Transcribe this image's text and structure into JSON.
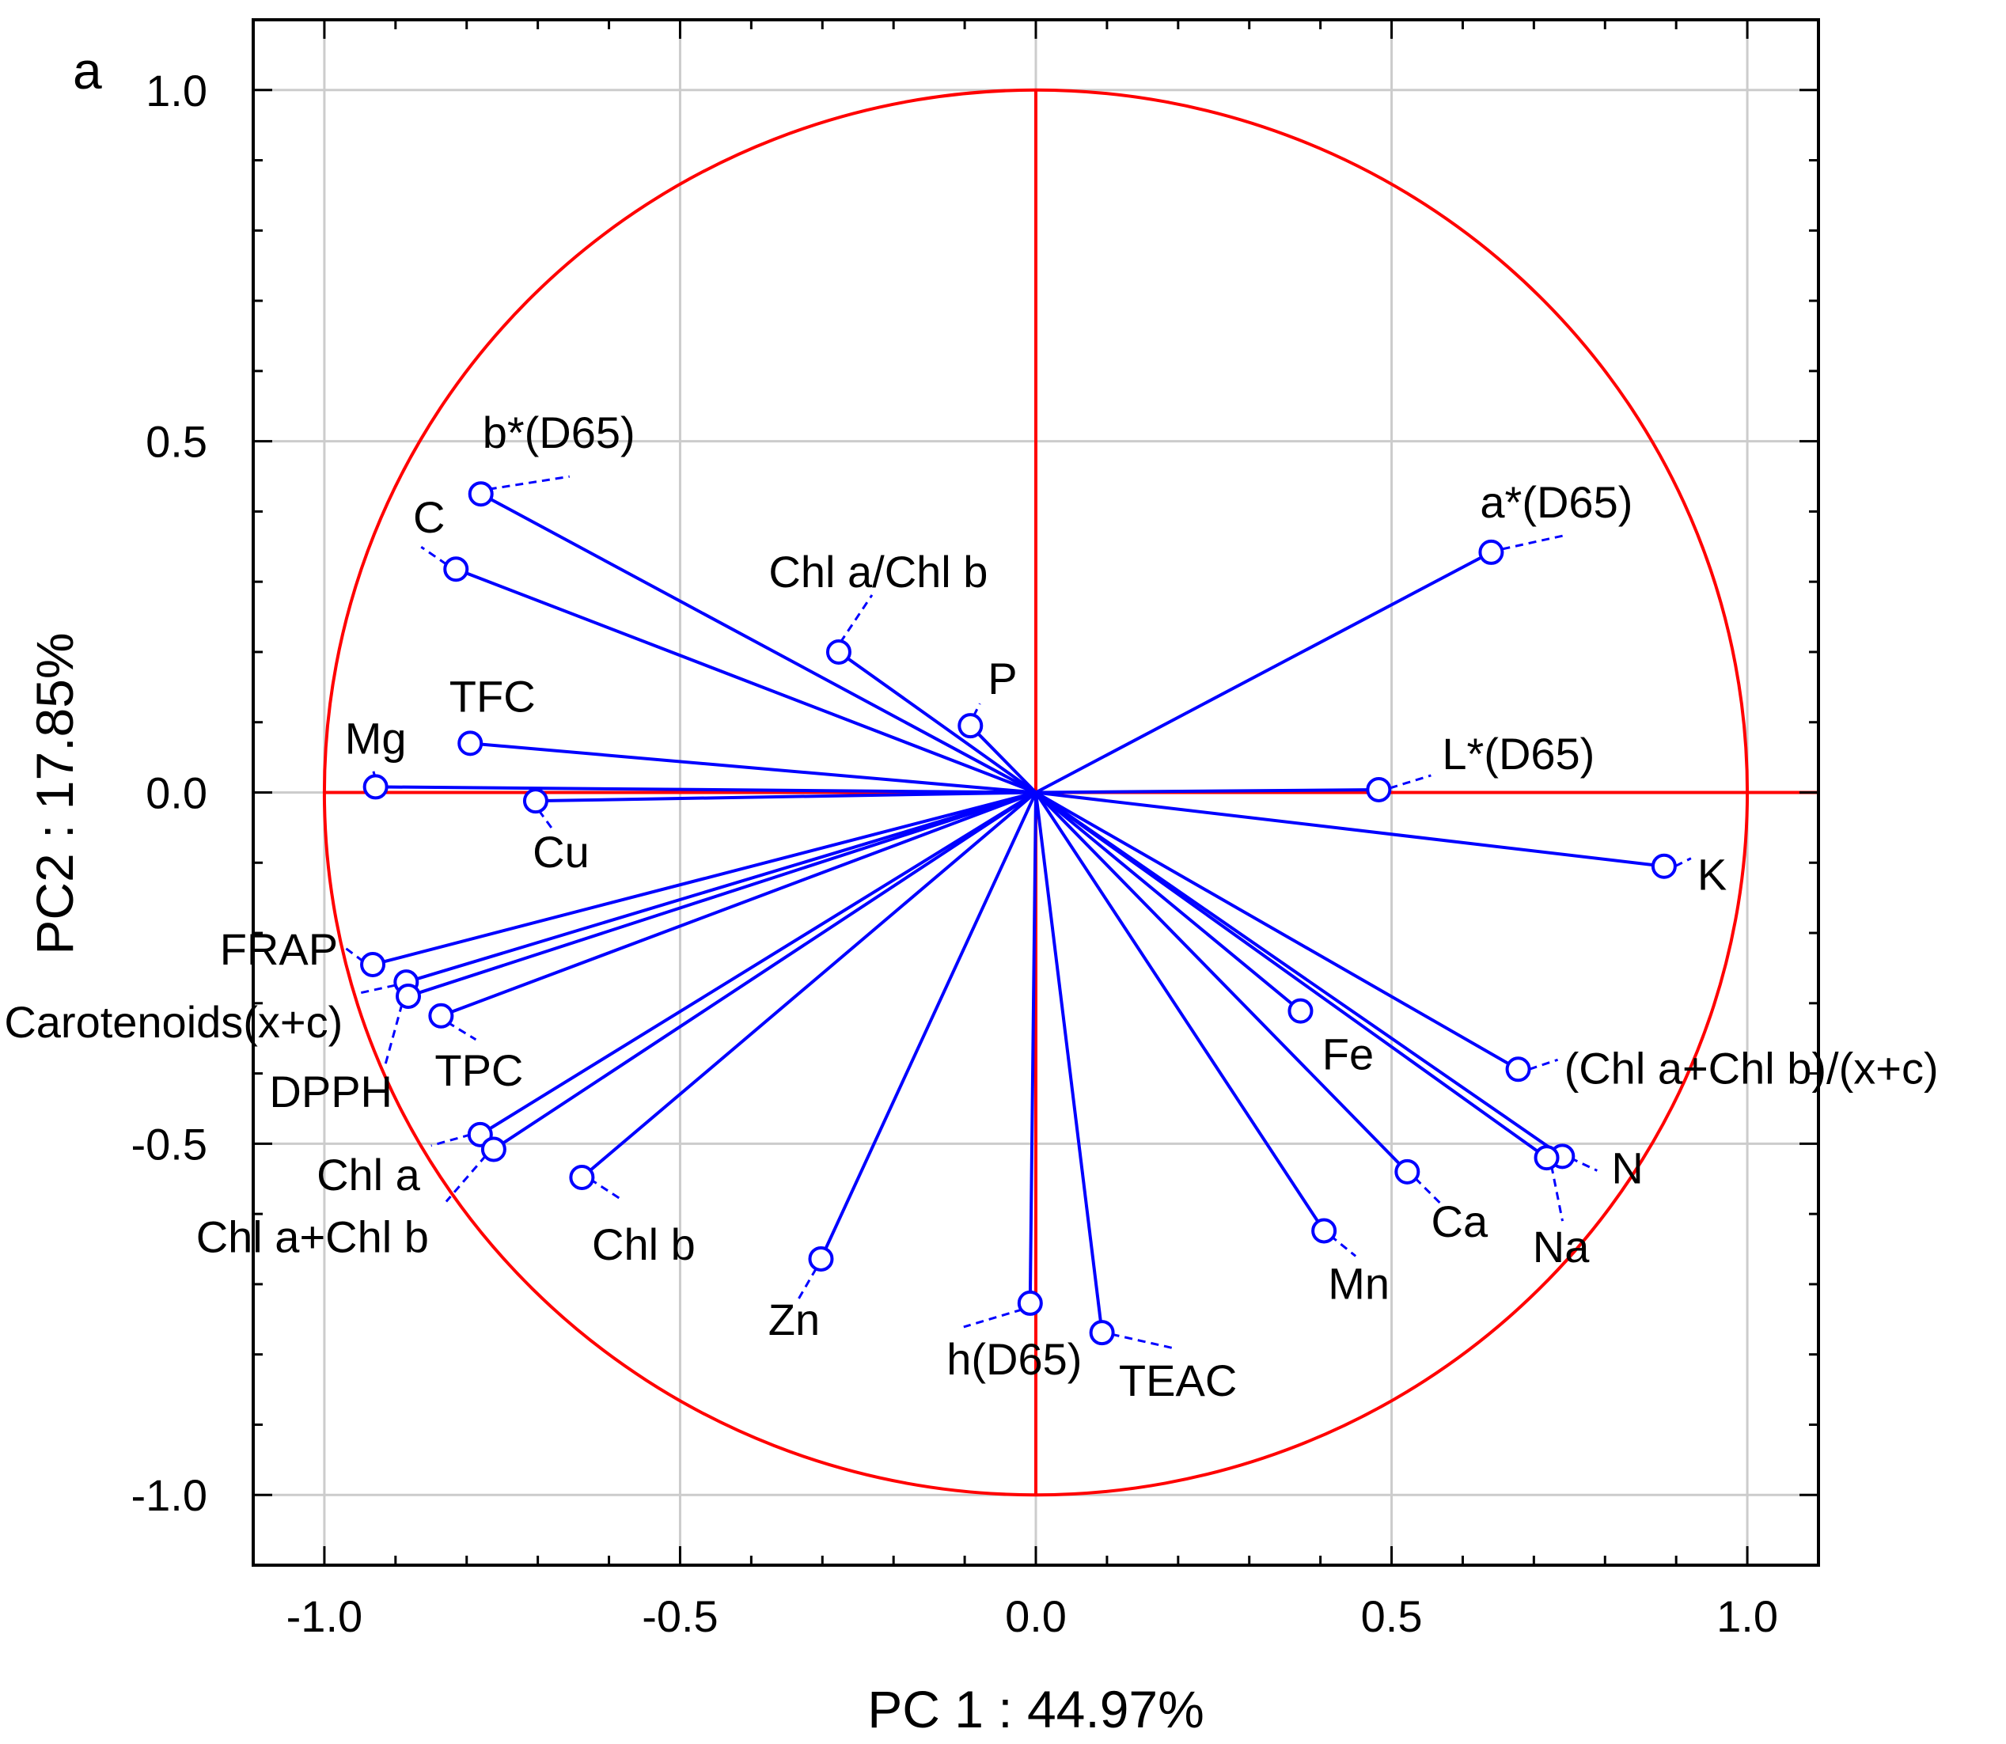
{
  "panel_label": "a",
  "colors": {
    "circle": "#ff0000",
    "axes_cross": "#ff0000",
    "vectors": "#0000ff",
    "grid": "#cccccc",
    "frame": "#000000"
  },
  "chart_data": {
    "type": "scatter",
    "subtype": "pca-loading-plot",
    "title": "",
    "xlabel": "PC 1 : 44.97%",
    "ylabel": "PC2 : 17.85%",
    "xlim": [
      -1.1,
      1.1
    ],
    "ylim": [
      -1.1,
      1.1
    ],
    "grid": true,
    "x_ticks": [
      -1.0,
      -0.5,
      0.0,
      0.5,
      1.0
    ],
    "y_ticks": [
      -1.0,
      -0.5,
      0.0,
      0.5,
      1.0
    ],
    "x_tick_labels": [
      "-1.0",
      "-0.5",
      "0.0",
      "0.5",
      "1.0"
    ],
    "y_tick_labels": [
      "-1.0",
      "-0.5",
      "0.0",
      "0.5",
      "1.0"
    ],
    "unit_circle_radius": 1.0,
    "points": [
      {
        "name": "b*(D65)",
        "x": -0.78,
        "y": 0.425,
        "label_anchor": "start"
      },
      {
        "name": "C",
        "x": -0.815,
        "y": 0.318,
        "label_anchor": "middle"
      },
      {
        "name": "Chl a/Chl b",
        "x": -0.277,
        "y": 0.2,
        "label_anchor": "middle"
      },
      {
        "name": "P",
        "x": -0.092,
        "y": 0.095,
        "label_anchor": "start"
      },
      {
        "name": "a*(D65)",
        "x": 0.64,
        "y": 0.342,
        "label_anchor": "start"
      },
      {
        "name": "TFC",
        "x": -0.795,
        "y": 0.07,
        "label_anchor": "middle"
      },
      {
        "name": "Mg",
        "x": -0.928,
        "y": 0.008,
        "label_anchor": "middle"
      },
      {
        "name": "Cu",
        "x": -0.703,
        "y": -0.012,
        "label_anchor": "middle"
      },
      {
        "name": "L*(D65)",
        "x": 0.482,
        "y": 0.004,
        "label_anchor": "start"
      },
      {
        "name": "K",
        "x": 0.883,
        "y": -0.105,
        "label_anchor": "start"
      },
      {
        "name": "FRAP",
        "x": -0.932,
        "y": -0.245,
        "label_anchor": "end"
      },
      {
        "name": "Carotenoids(x+c)",
        "x": -0.885,
        "y": -0.27,
        "label_anchor": "end"
      },
      {
        "name": "DPPH",
        "x": -0.882,
        "y": -0.29,
        "label_anchor": "end"
      },
      {
        "name": "TPC",
        "x": -0.836,
        "y": -0.318,
        "label_anchor": "middle"
      },
      {
        "name": "Fe",
        "x": 0.372,
        "y": -0.311,
        "label_anchor": "middle"
      },
      {
        "name": "(Chl a+Chl b)/(x+c)",
        "x": 0.678,
        "y": -0.394,
        "label_anchor": "start"
      },
      {
        "name": "Chl a",
        "x": -0.781,
        "y": -0.487,
        "label_anchor": "end"
      },
      {
        "name": "Chl a+Chl b",
        "x": -0.762,
        "y": -0.508,
        "label_anchor": "end"
      },
      {
        "name": "Chl b",
        "x": -0.638,
        "y": -0.548,
        "label_anchor": "middle"
      },
      {
        "name": "Ca",
        "x": 0.522,
        "y": -0.54,
        "label_anchor": "middle"
      },
      {
        "name": "N",
        "x": 0.74,
        "y": -0.518,
        "label_anchor": "start"
      },
      {
        "name": "Na",
        "x": 0.718,
        "y": -0.52,
        "label_anchor": "middle"
      },
      {
        "name": "Mn",
        "x": 0.405,
        "y": -0.624,
        "label_anchor": "middle"
      },
      {
        "name": "Zn",
        "x": -0.302,
        "y": -0.664,
        "label_anchor": "middle"
      },
      {
        "name": "h(D65)",
        "x": -0.008,
        "y": -0.727,
        "label_anchor": "middle"
      },
      {
        "name": "TEAC",
        "x": 0.093,
        "y": -0.769,
        "label_anchor": "middle"
      }
    ]
  }
}
